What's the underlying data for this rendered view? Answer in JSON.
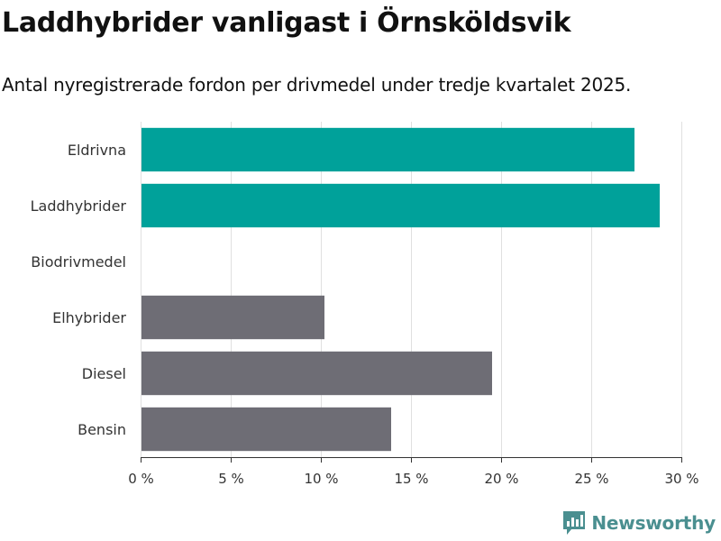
{
  "chart_data": {
    "type": "bar",
    "orientation": "horizontal",
    "title": "Laddhybrider vanligast i Örnsköldsvik",
    "subtitle": "Antal nyregistrerade fordon per drivmedel under tredje kvartalet 2025.",
    "categories": [
      "Eldrivna",
      "Laddhybrider",
      "Biodrivmedel",
      "Elhybrider",
      "Diesel",
      "Bensin"
    ],
    "values": [
      27.4,
      28.8,
      0,
      10.2,
      19.5,
      13.9
    ],
    "bar_colors": [
      "#00a19a",
      "#00a19a",
      "#6e6d75",
      "#6e6d75",
      "#6e6d75",
      "#6e6d75"
    ],
    "xlim": [
      0,
      30
    ],
    "xticks": [
      0,
      5,
      10,
      15,
      20,
      25,
      30
    ],
    "tick_labels": [
      "0 %",
      "5 %",
      "10 %",
      "15 %",
      "20 %",
      "25 %",
      "30 %"
    ],
    "xlabel": "",
    "ylabel": "",
    "grid": "vertical",
    "legend": "none"
  },
  "branding": {
    "name": "Newsworthy",
    "icon": "newsworthy-logo-icon",
    "color": "#4a8f90"
  }
}
